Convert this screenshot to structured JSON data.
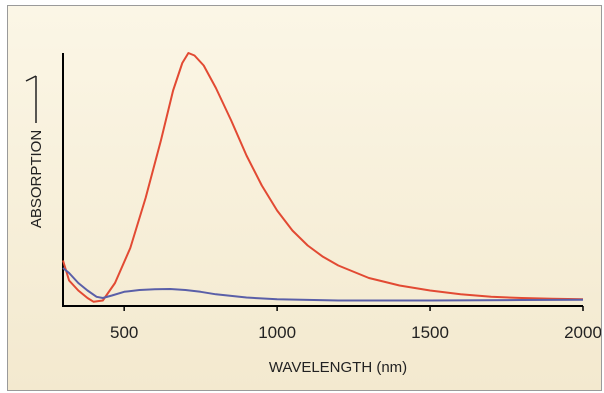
{
  "chart_data": {
    "type": "line",
    "xlabel": "WAVELENGTH (nm)",
    "ylabel": "ABSORPTION",
    "xlim": [
      300,
      2000
    ],
    "ylim": [
      0,
      1
    ],
    "x_ticks": [
      500,
      1000,
      1500,
      2000
    ],
    "grid": false,
    "legend": "none",
    "series": [
      {
        "color": "#e24a33",
        "points": [
          [
            300,
            0.17
          ],
          [
            320,
            0.09
          ],
          [
            350,
            0.05
          ],
          [
            380,
            0.02
          ],
          [
            400,
            0.005
          ],
          [
            430,
            0.01
          ],
          [
            470,
            0.08
          ],
          [
            520,
            0.22
          ],
          [
            570,
            0.42
          ],
          [
            620,
            0.65
          ],
          [
            660,
            0.85
          ],
          [
            690,
            0.96
          ],
          [
            710,
            1.0
          ],
          [
            730,
            0.99
          ],
          [
            760,
            0.95
          ],
          [
            800,
            0.86
          ],
          [
            850,
            0.73
          ],
          [
            900,
            0.59
          ],
          [
            950,
            0.47
          ],
          [
            1000,
            0.37
          ],
          [
            1050,
            0.29
          ],
          [
            1100,
            0.23
          ],
          [
            1150,
            0.185
          ],
          [
            1200,
            0.15
          ],
          [
            1300,
            0.1
          ],
          [
            1400,
            0.07
          ],
          [
            1500,
            0.05
          ],
          [
            1600,
            0.035
          ],
          [
            1700,
            0.025
          ],
          [
            1800,
            0.02
          ],
          [
            1900,
            0.017
          ],
          [
            2000,
            0.015
          ]
        ]
      },
      {
        "color": "#5a5fa8",
        "points": [
          [
            300,
            0.14
          ],
          [
            320,
            0.12
          ],
          [
            350,
            0.08
          ],
          [
            380,
            0.05
          ],
          [
            410,
            0.025
          ],
          [
            430,
            0.02
          ],
          [
            460,
            0.03
          ],
          [
            500,
            0.045
          ],
          [
            550,
            0.052
          ],
          [
            600,
            0.055
          ],
          [
            650,
            0.056
          ],
          [
            700,
            0.052
          ],
          [
            750,
            0.045
          ],
          [
            800,
            0.035
          ],
          [
            900,
            0.022
          ],
          [
            1000,
            0.015
          ],
          [
            1200,
            0.01
          ],
          [
            1500,
            0.01
          ],
          [
            1800,
            0.012
          ],
          [
            2000,
            0.013
          ]
        ]
      }
    ]
  }
}
